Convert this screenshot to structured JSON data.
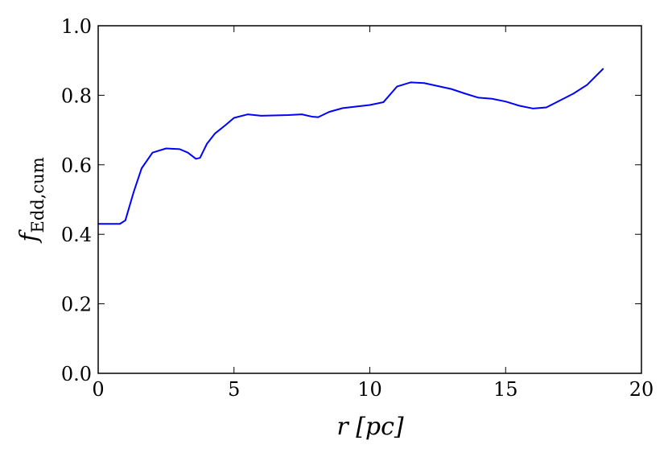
{
  "chart_data": {
    "type": "line",
    "xlabel": "r [pc]",
    "ylabel": {
      "main": "f",
      "sub": "Edd,cum"
    },
    "x": [
      0,
      0.8,
      1.0,
      1.3,
      1.6,
      2.0,
      2.5,
      3.0,
      3.3,
      3.6,
      3.75,
      4.0,
      4.3,
      4.7,
      5.0,
      5.5,
      6.0,
      7.0,
      7.5,
      7.9,
      8.1,
      8.5,
      9.0,
      10.0,
      10.5,
      11.0,
      11.5,
      12.0,
      13.0,
      13.5,
      14.0,
      14.5,
      15.0,
      15.5,
      16.0,
      16.5,
      17.0,
      17.5,
      18.0,
      18.6
    ],
    "series": [
      {
        "color": "#0000ff",
        "values": [
          0.43,
          0.43,
          0.44,
          0.52,
          0.59,
          0.635,
          0.647,
          0.645,
          0.635,
          0.617,
          0.62,
          0.66,
          0.69,
          0.715,
          0.735,
          0.745,
          0.741,
          0.743,
          0.745,
          0.738,
          0.737,
          0.752,
          0.763,
          0.772,
          0.78,
          0.825,
          0.837,
          0.835,
          0.818,
          0.805,
          0.793,
          0.79,
          0.782,
          0.77,
          0.762,
          0.765,
          0.785,
          0.805,
          0.83,
          0.877
        ]
      }
    ],
    "xlim": [
      0,
      20
    ],
    "xticks": [
      0,
      5,
      10,
      15,
      20
    ],
    "ylim": [
      0,
      1
    ],
    "yticks": [
      {
        "value": 0,
        "label": "0.0"
      },
      0.2,
      0.4,
      0.6,
      0.8,
      {
        "value": 1,
        "label": "1.0"
      }
    ],
    "grid": false
  }
}
